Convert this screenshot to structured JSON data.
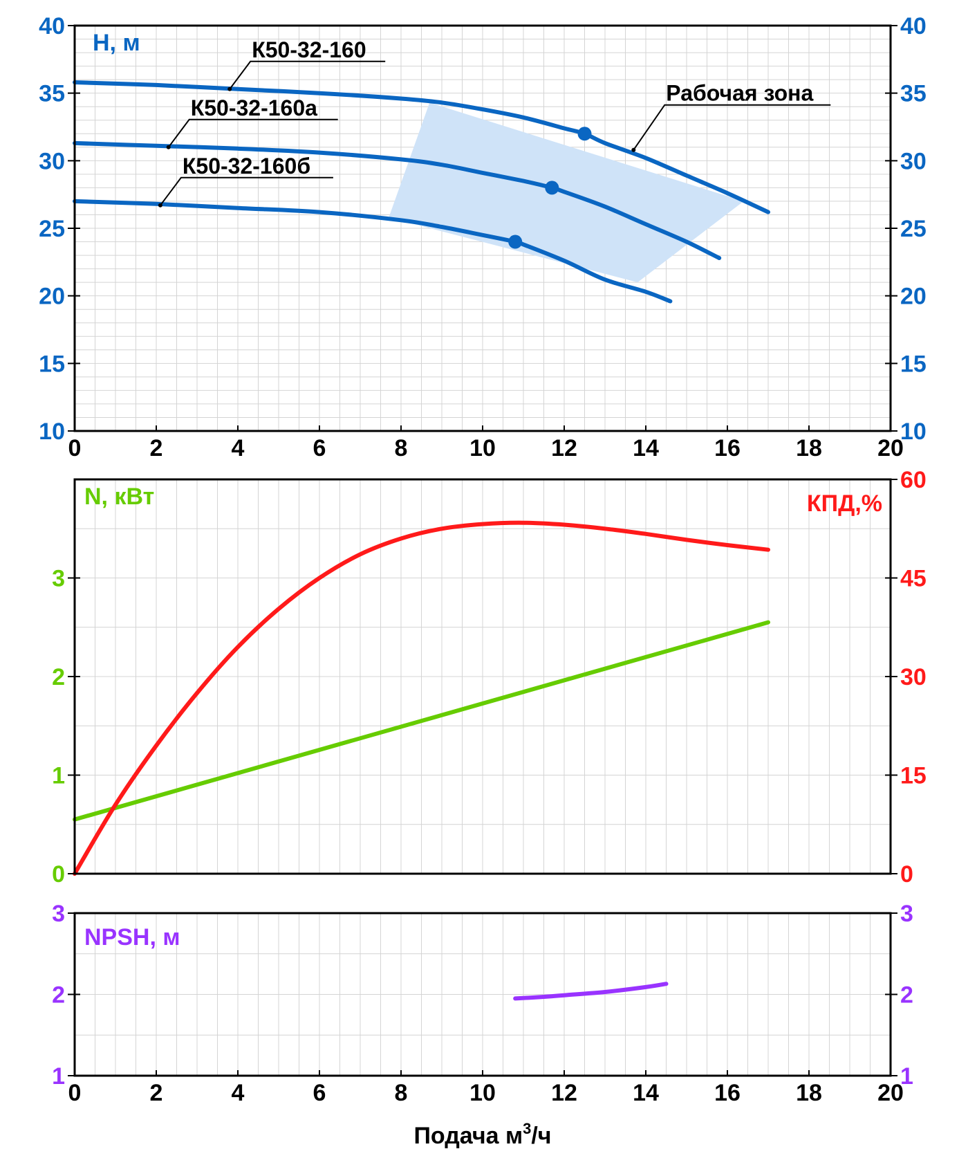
{
  "colors": {
    "head": "#0a66c2",
    "zone": "#cfe3f8",
    "power": "#66cc00",
    "efficiency": "#ff1a1a",
    "npsh": "#9933ff"
  },
  "chart_data": [
    {
      "id": "head",
      "type": "line",
      "ylabel": "Н, м",
      "ylim": [
        10,
        40
      ],
      "yticks": [
        10,
        15,
        20,
        25,
        30,
        35,
        40
      ],
      "xlim": [
        0,
        20
      ],
      "xticks": [
        0,
        2,
        4,
        6,
        8,
        10,
        12,
        14,
        16,
        18,
        20
      ],
      "series": [
        {
          "name": "К50-32-160",
          "x": [
            0,
            2,
            4,
            6,
            8,
            9,
            10,
            11,
            12,
            12.5,
            13,
            14,
            15,
            16,
            17
          ],
          "y": [
            35.8,
            35.6,
            35.3,
            35.0,
            34.6,
            34.3,
            33.8,
            33.2,
            32.4,
            32.0,
            31.3,
            30.2,
            28.9,
            27.6,
            26.2
          ]
        },
        {
          "name": "К50-32-160а",
          "x": [
            0,
            2,
            4,
            6,
            8,
            9,
            10,
            11,
            11.7,
            12,
            13,
            14,
            15,
            15.8
          ],
          "y": [
            31.3,
            31.1,
            30.9,
            30.6,
            30.1,
            29.7,
            29.1,
            28.5,
            28.0,
            27.7,
            26.6,
            25.3,
            24.0,
            22.8
          ]
        },
        {
          "name": "К50-32-160б",
          "x": [
            0,
            2,
            4,
            6,
            8,
            9,
            10,
            10.8,
            11,
            12,
            13,
            14,
            14.6
          ],
          "y": [
            27.0,
            26.8,
            26.5,
            26.2,
            25.6,
            25.1,
            24.5,
            24.0,
            23.8,
            22.6,
            21.2,
            20.3,
            19.6
          ]
        }
      ],
      "operating_points": [
        {
          "series": "К50-32-160",
          "x": 12.5,
          "y": 32.0
        },
        {
          "series": "К50-32-160а",
          "x": 11.7,
          "y": 28.0
        },
        {
          "series": "К50-32-160б",
          "x": 10.8,
          "y": 24.0
        }
      ],
      "working_zone": {
        "label": "Рабочая зона",
        "x": [
          8.7,
          16.4,
          13.8,
          7.7
        ],
        "y": [
          34.3,
          27.0,
          21.0,
          25.8
        ]
      },
      "annotations": [
        {
          "text": "К50-32-160",
          "x": 3.8,
          "y": 35.3
        },
        {
          "text": "К50-32-160а",
          "x": 2.3,
          "y": 31.0
        },
        {
          "text": "К50-32-160б",
          "x": 2.1,
          "y": 26.7
        },
        {
          "text": "Рабочая зона",
          "x": 13.7,
          "y": 30.8
        }
      ]
    },
    {
      "id": "power_efficiency",
      "type": "line",
      "xlim": [
        0,
        20
      ],
      "xticks": [
        0,
        2,
        4,
        6,
        8,
        10,
        12,
        14,
        16,
        18,
        20
      ],
      "y_left": {
        "label": "N, кВт",
        "lim": [
          0,
          4
        ],
        "ticks": [
          0,
          1,
          2,
          3
        ]
      },
      "y_right": {
        "label": "КПД,%",
        "lim": [
          0,
          60
        ],
        "ticks": [
          0,
          15,
          30,
          45,
          60
        ]
      },
      "series": [
        {
          "name": "N",
          "axis": "left",
          "x": [
            0,
            17
          ],
          "y": [
            0.55,
            2.55
          ]
        },
        {
          "name": "КПД",
          "axis": "right",
          "x": [
            0,
            1,
            2,
            3,
            4,
            5,
            6,
            7,
            8,
            9,
            10,
            11,
            12,
            13,
            14,
            15,
            16,
            17
          ],
          "y": [
            0,
            10.5,
            19.5,
            27.5,
            34.5,
            40.3,
            45.0,
            48.6,
            51.0,
            52.5,
            53.2,
            53.4,
            53.1,
            52.5,
            51.7,
            50.8,
            50.0,
            49.3
          ]
        }
      ]
    },
    {
      "id": "npsh",
      "type": "line",
      "ylabel": "NPSH, м",
      "ylim": [
        1,
        3
      ],
      "yticks": [
        1,
        2,
        3
      ],
      "xlim": [
        0,
        20
      ],
      "xticks": [
        0,
        2,
        4,
        6,
        8,
        10,
        12,
        14,
        16,
        18,
        20
      ],
      "xlabel": "Подача м",
      "xlabel_sup": "3",
      "xlabel_tail": "/ч",
      "series": [
        {
          "name": "NPSH",
          "x": [
            10.8,
            11.5,
            12,
            13,
            14,
            14.5
          ],
          "y": [
            1.95,
            1.97,
            1.99,
            2.03,
            2.09,
            2.13
          ]
        }
      ]
    }
  ]
}
